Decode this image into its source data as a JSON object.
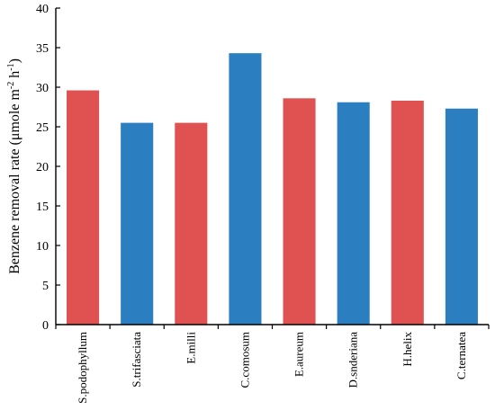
{
  "chart_data": {
    "type": "bar",
    "categories": [
      "S.podophyllum",
      "S.trifasciata",
      "E.milli",
      "C.comosum",
      "E.aureum",
      "D.snderiana",
      "H.helix",
      "C.ternatea"
    ],
    "values": [
      29.6,
      25.5,
      25.5,
      34.3,
      28.6,
      28.1,
      28.3,
      27.3
    ],
    "bar_colors": [
      "#e05252",
      "#2b7fc1",
      "#e05252",
      "#2b7fc1",
      "#e05252",
      "#2b7fc1",
      "#e05252",
      "#2b7fc1"
    ],
    "xlabel": "",
    "ylabel": {
      "main": "Benzene removal rate (μmole m",
      "sup1": "-2",
      "mid": " h",
      "sup2": "-1",
      "end": ")"
    },
    "ylim": [
      0,
      40
    ],
    "yticks": [
      0,
      5,
      10,
      15,
      20,
      25,
      30,
      35,
      40
    ],
    "grid": false,
    "legend": "none"
  }
}
